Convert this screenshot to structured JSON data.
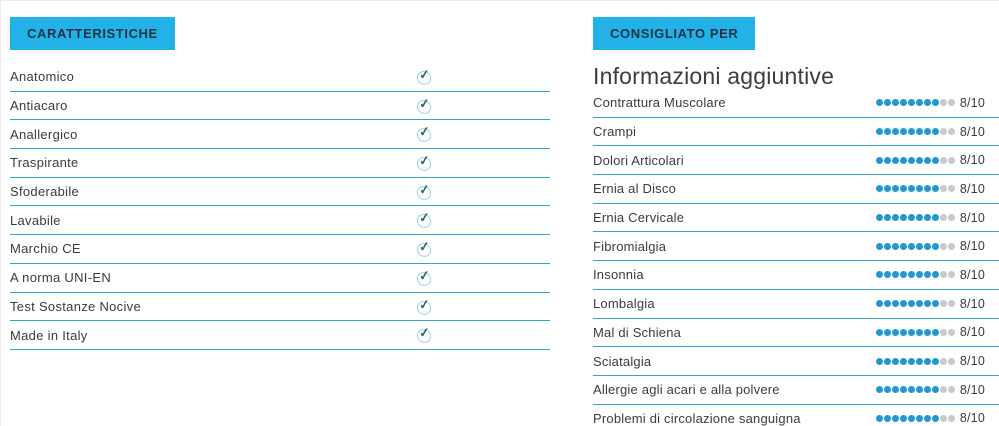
{
  "colors": {
    "accent": "#22b2e7",
    "divider": "#37a3cc",
    "dot_filled": "#2196d4",
    "dot_empty": "#c9c9c9",
    "check_mark": "#2f6e5c",
    "check_circle": "#9fd2e4",
    "text": "#3b3b3b",
    "button_text": "#1c3347",
    "heading": "#3c3c3c"
  },
  "icons": {
    "check": "✓"
  },
  "left": {
    "header": "CARATTERISTICHE",
    "items": [
      "Anatomico",
      "Antiacaro",
      "Anallergico",
      "Traspirante",
      "Sfoderabile",
      "Lavabile",
      "Marchio CE",
      "A norma UNI-EN",
      "Test Sostanze Nocive",
      "Made in Italy"
    ]
  },
  "right": {
    "header": "CONSIGLIATO PER",
    "title": "Informazioni aggiuntive",
    "items": [
      {
        "label": "Contrattura Muscolare",
        "score": 8,
        "max": 10,
        "display": "8/10"
      },
      {
        "label": "Crampi",
        "score": 8,
        "max": 10,
        "display": "8/10"
      },
      {
        "label": "Dolori Articolari",
        "score": 8,
        "max": 10,
        "display": "8/10"
      },
      {
        "label": "Ernia al Disco",
        "score": 8,
        "max": 10,
        "display": "8/10"
      },
      {
        "label": "Ernia Cervicale",
        "score": 8,
        "max": 10,
        "display": "8/10"
      },
      {
        "label": "Fibromialgia",
        "score": 8,
        "max": 10,
        "display": "8/10"
      },
      {
        "label": "Insonnia",
        "score": 8,
        "max": 10,
        "display": "8/10"
      },
      {
        "label": "Lombalgia",
        "score": 8,
        "max": 10,
        "display": "8/10"
      },
      {
        "label": "Mal di Schiena",
        "score": 8,
        "max": 10,
        "display": "8/10"
      },
      {
        "label": "Sciatalgia",
        "score": 8,
        "max": 10,
        "display": "8/10"
      },
      {
        "label": "Allergie agli acari e alla polvere",
        "score": 8,
        "max": 10,
        "display": "8/10"
      },
      {
        "label": "Problemi di circolazione sanguigna",
        "score": 8,
        "max": 10,
        "display": "8/10"
      }
    ]
  }
}
